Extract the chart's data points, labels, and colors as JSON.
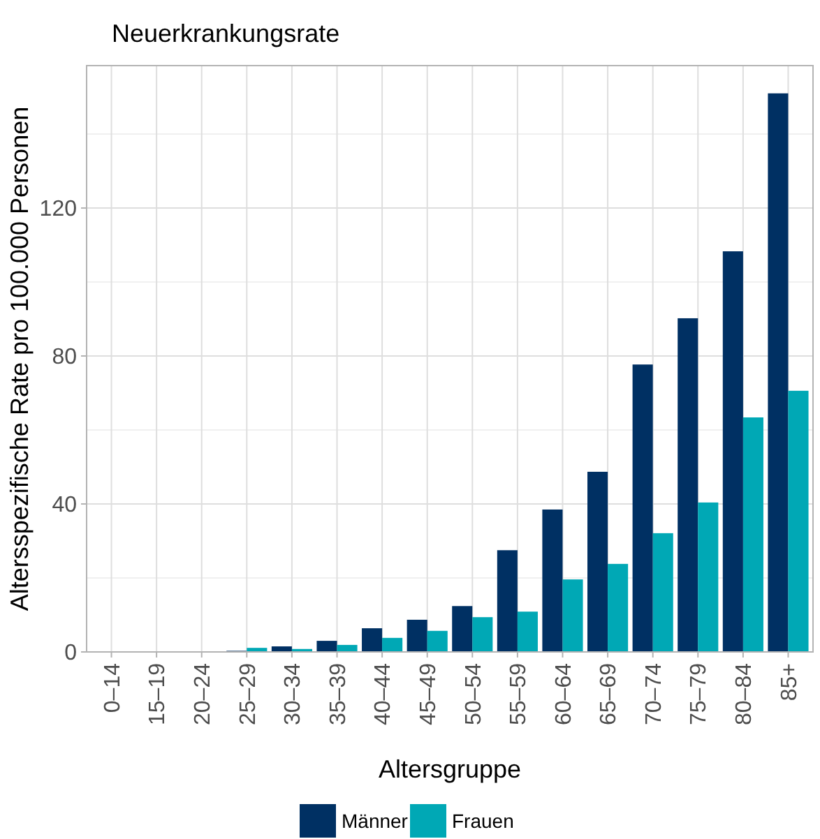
{
  "chart_data": {
    "type": "bar",
    "title": "Neuerkrankungsrate",
    "xlabel": "Altersgruppe",
    "ylabel": "Altersspezifische Rate pro 100.000 Personen",
    "categories": [
      "0–14",
      "15–19",
      "20–24",
      "25–29",
      "30–34",
      "35–39",
      "40–44",
      "45–49",
      "50–54",
      "55–59",
      "60–64",
      "65–69",
      "70–74",
      "75–79",
      "80–84",
      "85+"
    ],
    "series": [
      {
        "name": "Männer",
        "color": "#003063",
        "values": [
          0,
          0,
          0,
          0.3,
          1.5,
          3.0,
          6.4,
          8.7,
          12.4,
          27.5,
          38.5,
          48.7,
          77.7,
          90.2,
          108.3,
          151
        ]
      },
      {
        "name": "Frauen",
        "color": "#00a8b5",
        "values": [
          0,
          0,
          0,
          1.1,
          0.8,
          1.9,
          3.8,
          5.7,
          9.4,
          10.9,
          19.6,
          23.8,
          32.1,
          40.4,
          63.4,
          70.6
        ]
      }
    ],
    "ylim": [
      0,
      158.5
    ],
    "yticks": [
      0,
      40,
      80,
      120
    ],
    "grid": true,
    "legend": "bottom"
  }
}
